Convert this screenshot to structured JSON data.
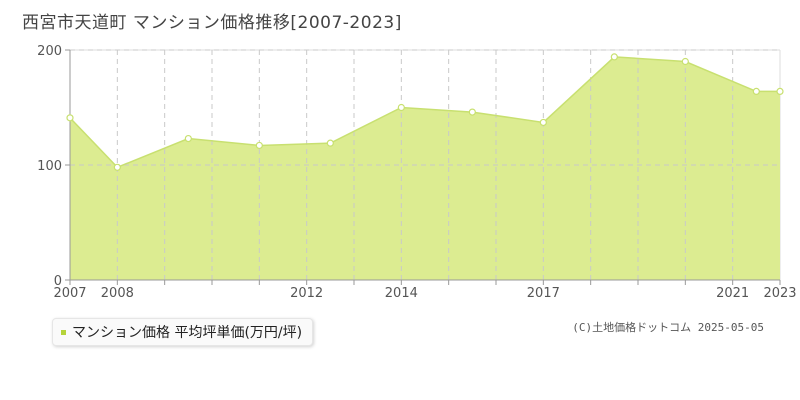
{
  "title": "西宮市天道町 マンション価格推移[2007-2023]",
  "legend": {
    "label": "マンション価格 平均坪単価(万円/坪)",
    "color": "#b5d33a"
  },
  "copyright": "(C)土地価格ドットコム 2025-05-05",
  "colors": {
    "fill": "#dcec91",
    "line": "#c8e070",
    "point_fill": "#ffffff",
    "grid": "#c9c9c9",
    "axis": "#999999"
  },
  "chart_data": {
    "type": "area",
    "x": [
      2007,
      2008,
      2009,
      2010,
      2011,
      2012,
      2013,
      2014,
      2015,
      2016,
      2017,
      2018,
      2019,
      2020,
      2021,
      2022,
      2023
    ],
    "x_tick_labels": [
      "2007",
      "2008",
      "2012",
      "2014",
      "2017",
      "2021",
      "2023"
    ],
    "y_ticks": [
      0,
      100,
      200
    ],
    "ylim": [
      0,
      200
    ],
    "series": [
      {
        "x": [
          2007,
          2008,
          2009.5,
          2011,
          2012.5,
          2014,
          2015.5,
          2017,
          2018.5,
          2020,
          2021.5
        ],
        "values": [
          141,
          98,
          123,
          117,
          119,
          150,
          146,
          137,
          194,
          190,
          164
        ]
      }
    ],
    "grid": true
  }
}
